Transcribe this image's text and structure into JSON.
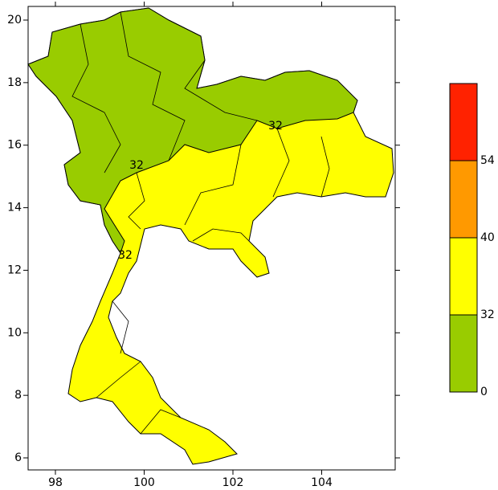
{
  "map": {
    "xlim": [
      97.385,
      105.656
    ],
    "ylim": [
      5.615,
      20.437
    ],
    "xticks": [
      98,
      100,
      102,
      104
    ],
    "yticks": [
      6,
      8,
      10,
      12,
      14,
      16,
      18,
      20
    ],
    "colorbar": {
      "levels": [
        0,
        32,
        40,
        54
      ],
      "colors": [
        "#99cc00",
        "#ffff00",
        "#ff9900",
        "#ff2200"
      ]
    },
    "contour_labels": [
      32,
      32,
      32
    ]
  }
}
